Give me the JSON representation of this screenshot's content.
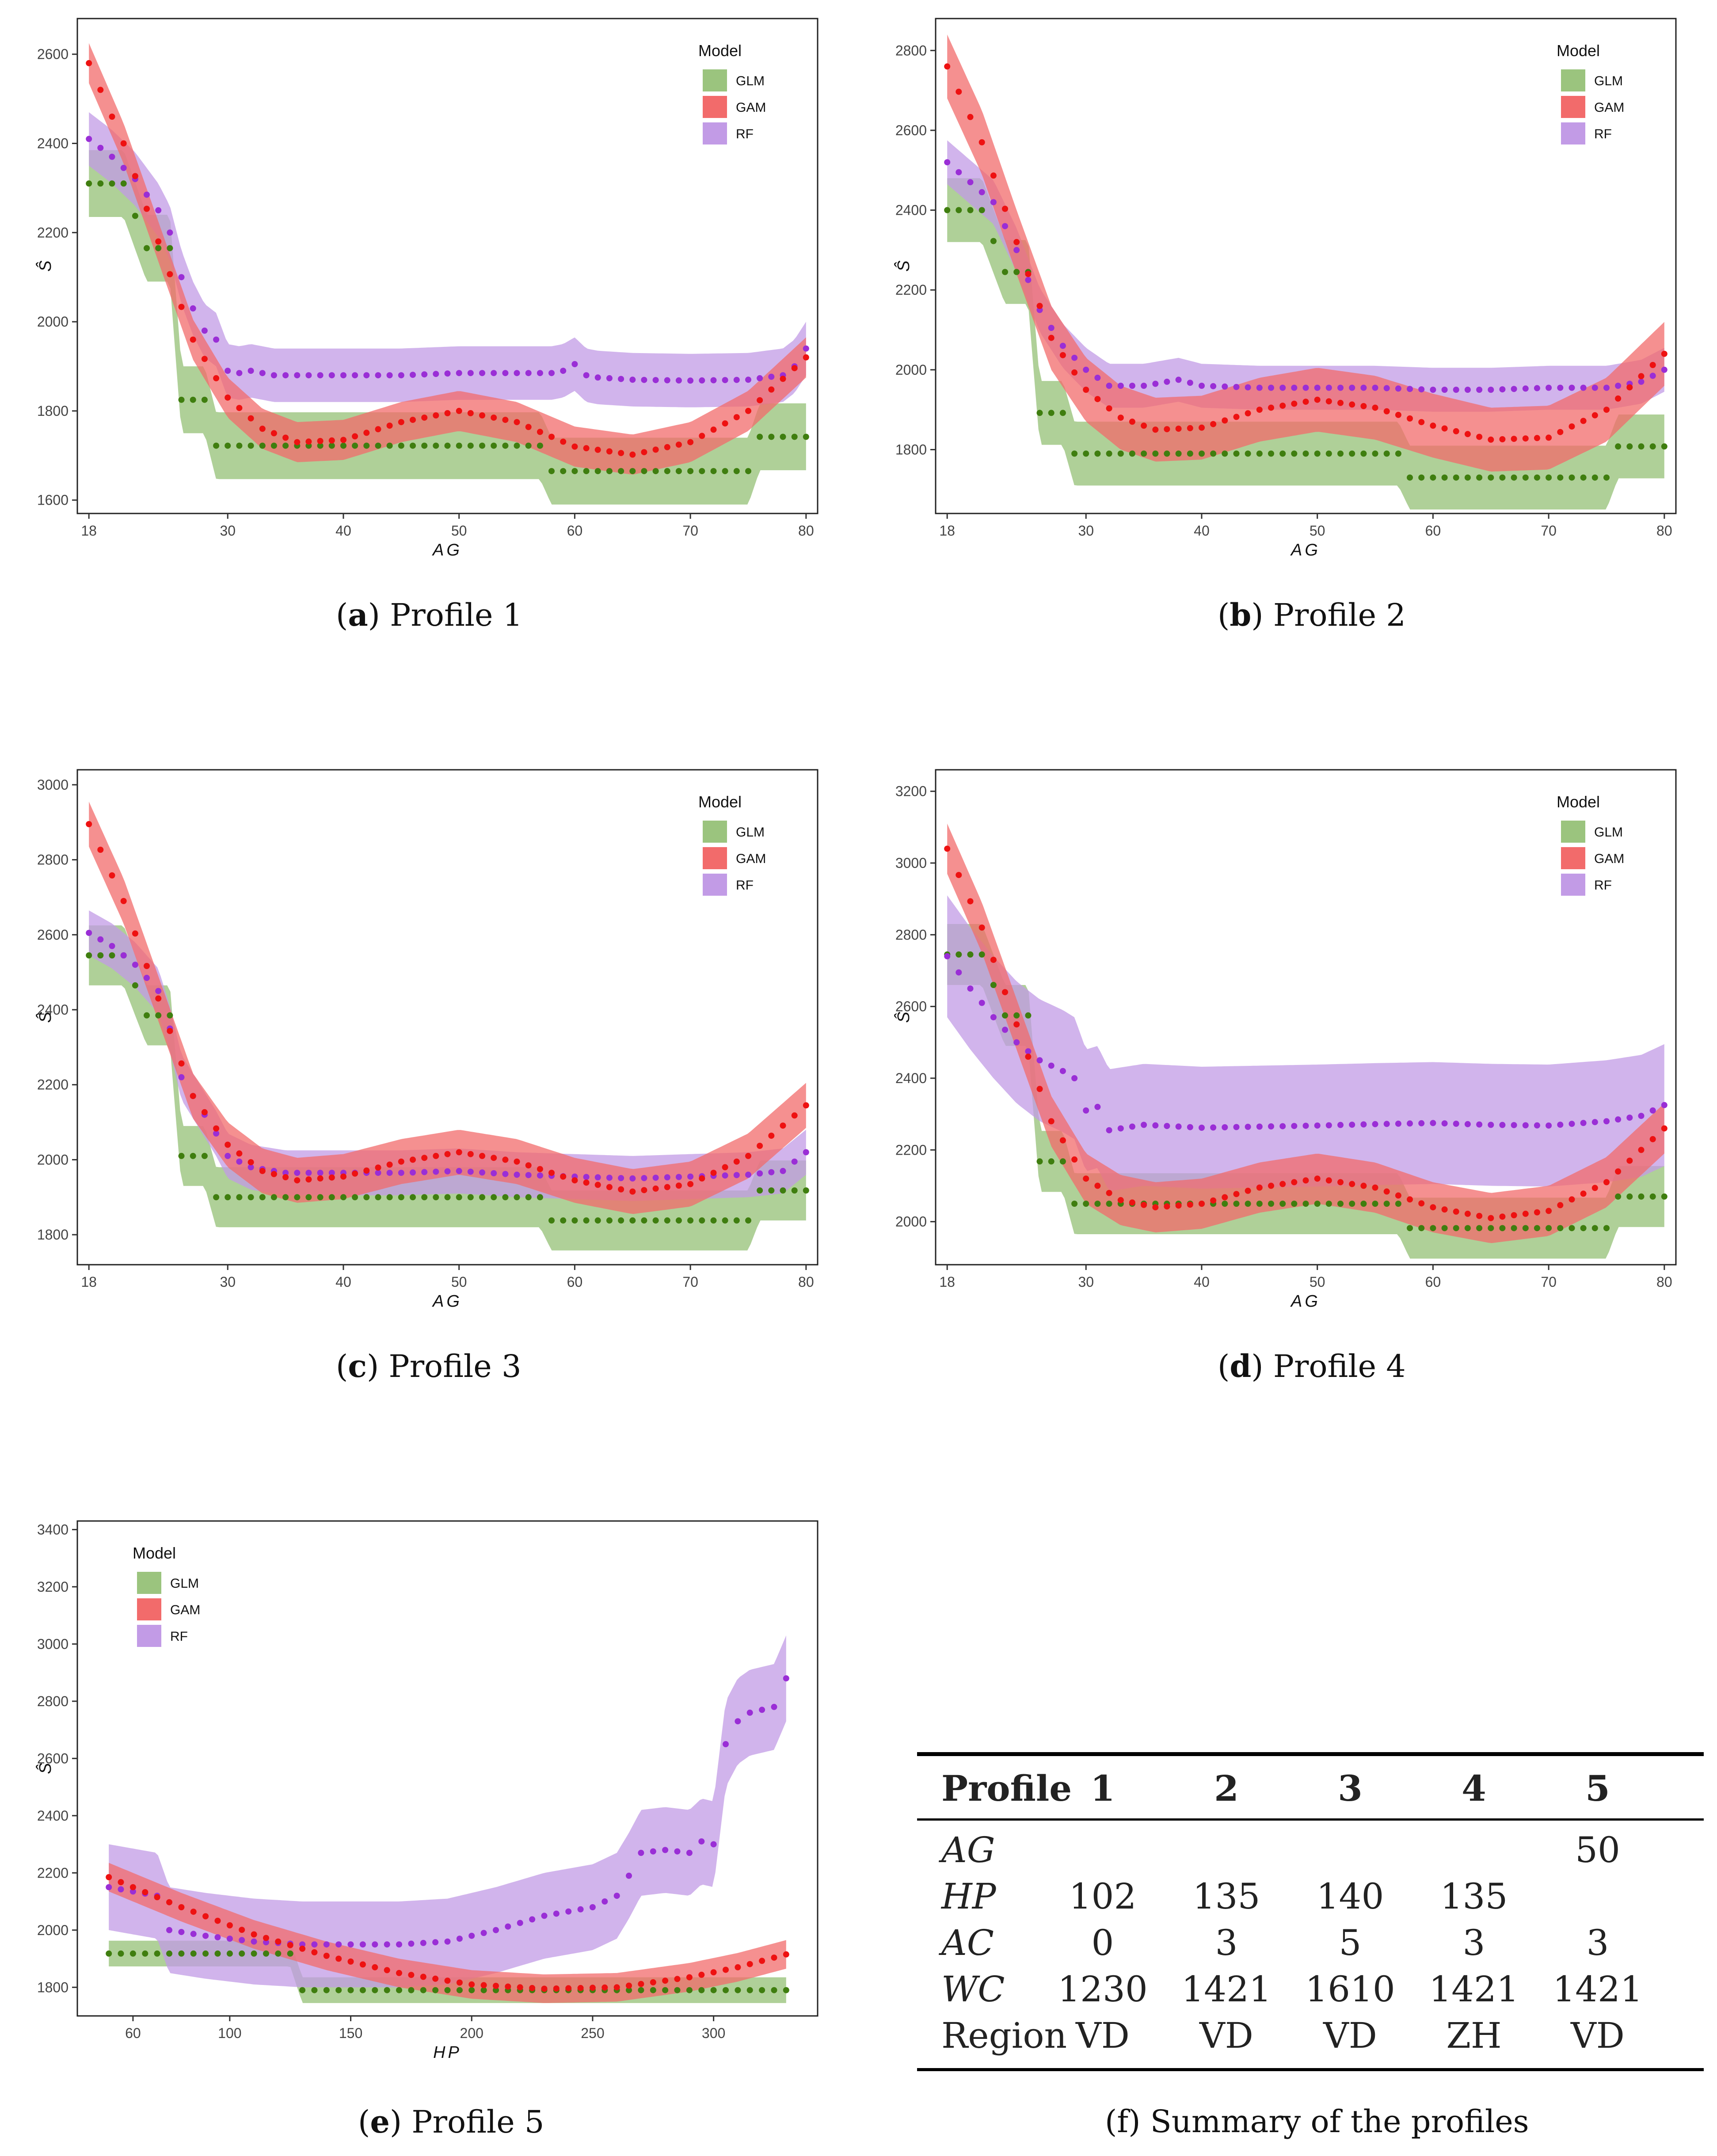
{
  "colors": {
    "glm_band": "#9bc47e",
    "glm_point": "#3f7e0f",
    "gam_band": "#f26b6b",
    "gam_point": "#ee1111",
    "rf_band": "#c29be6",
    "rf_point": "#9a2ed6"
  },
  "legend": {
    "title": "Model",
    "glm": "GLM",
    "gam": "GAM",
    "rf": "RF"
  },
  "captions": {
    "a_letter": "a",
    "a_text": ") Profile 1",
    "b_letter": "b",
    "b_text": ") Profile 2",
    "c_letter": "c",
    "c_text": ") Profile 3",
    "d_letter": "d",
    "d_text": ") Profile 4",
    "e_letter": "e",
    "e_text": ") Profile 5",
    "f_text": "(f) Summary of the profiles"
  },
  "chart_data": [
    {
      "id": "profile1",
      "type": "line",
      "title": "Profile 1",
      "xlabel": "AG",
      "ylabel": "Ŝ",
      "xlim": [
        17,
        81
      ],
      "ylim": [
        1570,
        2680
      ],
      "xticks": [
        18,
        30,
        40,
        50,
        60,
        70,
        80
      ],
      "yticks": [
        1600,
        1800,
        2000,
        2200,
        2400,
        2600
      ],
      "legend": "top-right",
      "glm": {
        "x": [
          18,
          21,
          23,
          25,
          26,
          28,
          29,
          57,
          58,
          75,
          76,
          80
        ],
        "y": [
          2310,
          2310,
          2165,
          2165,
          1825,
          1825,
          1722,
          1722,
          1665,
          1665,
          1742,
          1742
        ],
        "band": 75
      },
      "gam": {
        "x": [
          18,
          21,
          24,
          27,
          30,
          33,
          36,
          40,
          45,
          50,
          55,
          60,
          65,
          70,
          75,
          80
        ],
        "y": [
          2580,
          2400,
          2180,
          1960,
          1830,
          1760,
          1730,
          1735,
          1775,
          1800,
          1775,
          1720,
          1702,
          1730,
          1800,
          1920
        ],
        "band": 45
      },
      "rf": {
        "x": [
          18,
          20,
          22,
          24,
          25,
          26,
          27,
          28,
          29,
          30,
          31,
          32,
          34,
          36,
          40,
          45,
          50,
          55,
          58,
          59,
          60,
          61,
          62,
          65,
          70,
          75,
          78,
          79,
          80
        ],
        "y": [
          2410,
          2370,
          2320,
          2250,
          2200,
          2100,
          2030,
          1980,
          1960,
          1890,
          1885,
          1890,
          1880,
          1880,
          1880,
          1880,
          1885,
          1885,
          1885,
          1890,
          1905,
          1880,
          1875,
          1870,
          1868,
          1870,
          1880,
          1900,
          1940
        ],
        "band": 60
      }
    },
    {
      "id": "profile2",
      "type": "line",
      "title": "Profile 2",
      "xlabel": "AG",
      "ylabel": "Ŝ",
      "xlim": [
        17,
        81
      ],
      "ylim": [
        1640,
        2880
      ],
      "xticks": [
        18,
        30,
        40,
        50,
        60,
        70,
        80
      ],
      "yticks": [
        1800,
        2000,
        2200,
        2400,
        2600,
        2800
      ],
      "legend": "top-right",
      "glm": {
        "x": [
          18,
          21,
          23,
          25,
          26,
          28,
          29,
          57,
          58,
          75,
          76,
          80
        ],
        "y": [
          2400,
          2400,
          2245,
          2245,
          1892,
          1892,
          1790,
          1790,
          1730,
          1730,
          1808,
          1808
        ],
        "band": 80
      },
      "gam": {
        "x": [
          18,
          21,
          24,
          27,
          30,
          33,
          36,
          40,
          45,
          50,
          55,
          60,
          65,
          70,
          75,
          80
        ],
        "y": [
          2760,
          2570,
          2320,
          2080,
          1950,
          1880,
          1850,
          1855,
          1900,
          1925,
          1905,
          1860,
          1825,
          1830,
          1900,
          2040
        ],
        "band": 80
      },
      "rf": {
        "x": [
          18,
          20,
          22,
          24,
          26,
          28,
          30,
          32,
          35,
          38,
          40,
          45,
          50,
          55,
          60,
          65,
          70,
          75,
          78,
          80
        ],
        "y": [
          2520,
          2470,
          2420,
          2300,
          2150,
          2060,
          2000,
          1960,
          1960,
          1975,
          1960,
          1955,
          1955,
          1955,
          1950,
          1950,
          1955,
          1955,
          1970,
          2000
        ],
        "band": 55
      }
    },
    {
      "id": "profile3",
      "type": "line",
      "title": "Profile 3",
      "xlabel": "AG",
      "ylabel": "Ŝ",
      "xlim": [
        17,
        81
      ],
      "ylim": [
        1720,
        3040
      ],
      "xticks": [
        18,
        30,
        40,
        50,
        60,
        70,
        80
      ],
      "yticks": [
        1800,
        2000,
        2200,
        2400,
        2600,
        2800,
        3000
      ],
      "legend": "top-right",
      "glm": {
        "x": [
          18,
          21,
          23,
          25,
          26,
          28,
          29,
          57,
          58,
          75,
          76,
          80
        ],
        "y": [
          2545,
          2545,
          2385,
          2385,
          2010,
          2010,
          1900,
          1900,
          1838,
          1838,
          1918,
          1918
        ],
        "band": 80
      },
      "gam": {
        "x": [
          18,
          21,
          24,
          27,
          30,
          33,
          36,
          40,
          45,
          50,
          55,
          60,
          65,
          70,
          75,
          80
        ],
        "y": [
          2895,
          2690,
          2430,
          2170,
          2040,
          1970,
          1945,
          1955,
          1995,
          2020,
          1995,
          1945,
          1915,
          1935,
          2010,
          2145
        ],
        "band": 60
      },
      "rf": {
        "x": [
          18,
          20,
          22,
          24,
          25,
          26,
          27,
          28,
          29,
          30,
          32,
          35,
          40,
          45,
          50,
          55,
          60,
          65,
          70,
          75,
          78,
          80
        ],
        "y": [
          2605,
          2570,
          2520,
          2450,
          2350,
          2220,
          2170,
          2120,
          2070,
          2010,
          1980,
          1965,
          1965,
          1965,
          1970,
          1960,
          1955,
          1950,
          1955,
          1960,
          1970,
          2020
        ],
        "band": 60
      }
    },
    {
      "id": "profile4",
      "type": "line",
      "title": "Profile 4",
      "xlabel": "AG",
      "ylabel": "Ŝ",
      "xlim": [
        17,
        81
      ],
      "ylim": [
        1880,
        3260
      ],
      "xticks": [
        18,
        30,
        40,
        50,
        60,
        70,
        80
      ],
      "yticks": [
        2000,
        2200,
        2400,
        2600,
        2800,
        3000,
        3200
      ],
      "legend": "top-right",
      "glm": {
        "x": [
          18,
          21,
          23,
          25,
          26,
          28,
          29,
          57,
          58,
          75,
          76,
          80
        ],
        "y": [
          2745,
          2745,
          2575,
          2575,
          2168,
          2168,
          2050,
          2050,
          1982,
          1982,
          2070,
          2070
        ],
        "band": 85
      },
      "gam": {
        "x": [
          18,
          21,
          24,
          27,
          30,
          33,
          36,
          40,
          45,
          50,
          55,
          60,
          65,
          70,
          75,
          80
        ],
        "y": [
          3040,
          2820,
          2550,
          2280,
          2120,
          2060,
          2040,
          2050,
          2095,
          2120,
          2095,
          2040,
          2010,
          2030,
          2110,
          2260
        ],
        "band": 70
      },
      "rf": {
        "x": [
          18,
          20,
          22,
          24,
          26,
          28,
          29,
          30,
          31,
          32,
          35,
          40,
          45,
          50,
          55,
          60,
          65,
          70,
          75,
          78,
          80
        ],
        "y": [
          2740,
          2650,
          2570,
          2500,
          2450,
          2420,
          2400,
          2310,
          2320,
          2255,
          2270,
          2262,
          2265,
          2268,
          2272,
          2275,
          2270,
          2268,
          2280,
          2295,
          2325
        ],
        "band": 170
      }
    },
    {
      "id": "profile5",
      "type": "line",
      "title": "Profile 5",
      "xlabel": "HP",
      "ylabel": "Ŝ",
      "xlim": [
        37,
        343
      ],
      "ylim": [
        1700,
        3430
      ],
      "xticks": [
        60,
        100,
        150,
        200,
        250,
        300
      ],
      "yticks": [
        1800,
        2000,
        2200,
        2400,
        2600,
        2800,
        3000,
        3200,
        3400
      ],
      "legend": "top-left",
      "glm": {
        "x": [
          50,
          125,
          130,
          330
        ],
        "y": [
          1918,
          1918,
          1790,
          1790
        ],
        "band": 45
      },
      "gam": {
        "x": [
          50,
          80,
          110,
          140,
          170,
          200,
          230,
          260,
          290,
          310,
          330
        ],
        "y": [
          2185,
          2080,
          1985,
          1910,
          1850,
          1810,
          1795,
          1800,
          1835,
          1870,
          1915
        ],
        "band": 50
      },
      "rf": {
        "x": [
          50,
          70,
          75,
          90,
          110,
          130,
          150,
          170,
          190,
          210,
          230,
          250,
          260,
          265,
          270,
          280,
          290,
          295,
          300,
          305,
          310,
          315,
          320,
          325,
          330
        ],
        "y": [
          2150,
          2120,
          2000,
          1980,
          1960,
          1950,
          1950,
          1950,
          1960,
          2000,
          2050,
          2080,
          2120,
          2190,
          2270,
          2280,
          2270,
          2310,
          2300,
          2650,
          2730,
          2760,
          2770,
          2780,
          2880
        ],
        "band": 150
      }
    },
    {
      "id": "summary",
      "type": "table",
      "title": "Summary of the profiles",
      "columns": [
        "Profile",
        "1",
        "2",
        "3",
        "4",
        "5"
      ],
      "rows": [
        [
          "AG",
          "",
          "",
          "",
          "",
          "50"
        ],
        [
          "HP",
          "102",
          "135",
          "140",
          "135",
          ""
        ],
        [
          "AC",
          "0",
          "3",
          "5",
          "3",
          "3"
        ],
        [
          "WC",
          "1230",
          "1421",
          "1610",
          "1421",
          "1421"
        ],
        [
          "Region",
          "VD",
          "VD",
          "VD",
          "ZH",
          "VD"
        ]
      ]
    }
  ]
}
